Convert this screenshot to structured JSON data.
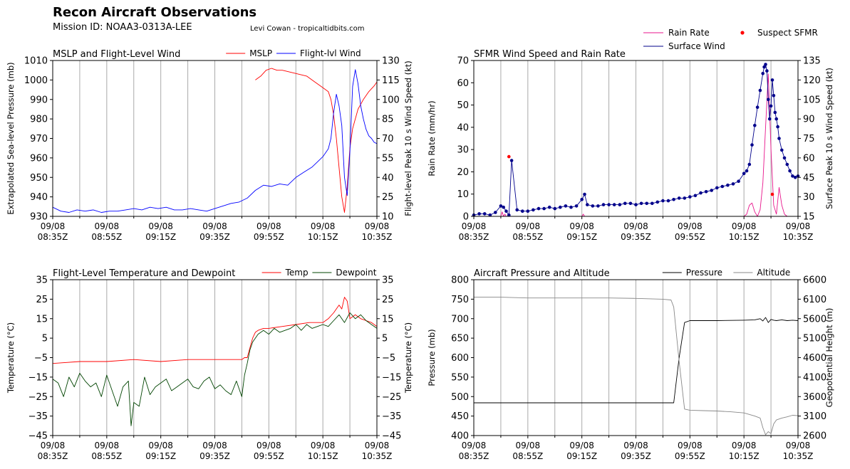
{
  "header": {
    "title": "Recon Aircraft Observations",
    "mission": "Mission ID: NOAA3-0313A-LEE",
    "credit": "Levi Cowan - tropicaltidbits.com"
  },
  "colors": {
    "mslp": "#ff0000",
    "flight_wind": "#0000ff",
    "rain": "#e8168c",
    "surface_wind": "#00008b",
    "suspect": "#ff0000",
    "temp": "#ff0000",
    "dewpoint": "#004400",
    "pressure": "#000000",
    "altitude": "#888888",
    "grid": "#aaaaaa"
  },
  "time_ticks": [
    [
      "09/08",
      "08:35Z"
    ],
    [
      "09/08",
      "08:55Z"
    ],
    [
      "09/08",
      "09:15Z"
    ],
    [
      "09/08",
      "09:35Z"
    ],
    [
      "09/08",
      "09:55Z"
    ],
    [
      "09/08",
      "10:15Z"
    ],
    [
      "09/08",
      "10:35Z"
    ]
  ],
  "top_legend": {
    "rain": "Rain Rate",
    "surface": "Surface Wind",
    "suspect": "Suspect SFMR"
  },
  "chart_data": [
    {
      "id": "p1",
      "type": "line",
      "title": "MSLP and Flight-Level Wind",
      "xlim": [
        0,
        120
      ],
      "ylabel": "Extrapolated Sea-level Pressure (mb)",
      "ylim": [
        930,
        1010
      ],
      "yticks": [
        930,
        940,
        950,
        960,
        970,
        980,
        990,
        1000,
        1010
      ],
      "ylabel2": "Flight-level Peak 10 s Wind Speed (kt)",
      "ylim2": [
        10,
        130
      ],
      "yticks2": [
        10,
        25,
        40,
        55,
        70,
        85,
        100,
        115,
        130
      ],
      "series": [
        {
          "name": "MSLP",
          "axis": "left",
          "color": "#ff0000",
          "marker": false,
          "x": [
            75,
            77,
            79,
            81,
            83,
            85,
            88,
            91,
            94,
            97,
            100,
            102,
            103,
            104,
            105,
            106,
            107,
            108,
            109,
            110,
            111,
            113,
            115,
            117,
            119,
            120
          ],
          "y": [
            1000,
            1002,
            1005,
            1006,
            1005,
            1005,
            1004,
            1003,
            1002,
            999,
            996,
            994,
            990,
            982,
            970,
            955,
            940,
            932,
            945,
            965,
            975,
            985,
            990,
            994,
            997,
            999
          ]
        },
        {
          "name": "Flight-lvl Wind",
          "axis": "right",
          "color": "#0000ff",
          "marker": false,
          "x": [
            0,
            3,
            6,
            9,
            12,
            15,
            18,
            21,
            24,
            27,
            30,
            33,
            36,
            39,
            42,
            45,
            48,
            51,
            54,
            57,
            60,
            63,
            66,
            69,
            72,
            75,
            78,
            81,
            84,
            87,
            90,
            93,
            96,
            98,
            100,
            102,
            103,
            104,
            105,
            106,
            107,
            108,
            109,
            110,
            111,
            112,
            113,
            114,
            115,
            116,
            117,
            118,
            119,
            120
          ],
          "y": [
            17,
            14,
            13,
            15,
            14,
            15,
            13,
            14,
            14,
            15,
            16,
            15,
            17,
            16,
            17,
            15,
            15,
            16,
            15,
            14,
            16,
            18,
            20,
            21,
            24,
            30,
            34,
            33,
            35,
            34,
            40,
            44,
            48,
            52,
            56,
            62,
            70,
            90,
            104,
            95,
            80,
            40,
            26,
            60,
            110,
            123,
            112,
            95,
            85,
            77,
            72,
            70,
            67,
            66
          ]
        }
      ],
      "legend": [
        "MSLP",
        "Flight-lvl Wind"
      ]
    },
    {
      "id": "p2",
      "type": "line",
      "title": "SFMR Wind Speed and Rain Rate",
      "xlim": [
        0,
        120
      ],
      "ylabel": "Rain Rate (mm/hr)",
      "ylim": [
        0,
        70
      ],
      "yticks": [
        0,
        10,
        20,
        30,
        40,
        50,
        60,
        70
      ],
      "ylabel2": "Surface Peak 10 s Wind Speed (kt)",
      "ylim2": [
        15,
        135
      ],
      "yticks2": [
        15,
        30,
        45,
        60,
        75,
        90,
        105,
        120,
        135
      ],
      "series": [
        {
          "name": "Rain Rate",
          "axis": "left",
          "color": "#e8168c",
          "marker": false,
          "x": [
            0,
            5,
            10,
            10.5,
            11,
            11.5,
            12,
            20,
            40,
            40.5,
            41,
            60,
            80,
            90,
            100,
            101,
            102,
            103,
            104,
            105,
            106,
            107,
            108,
            109,
            110,
            111,
            112,
            113,
            114,
            115,
            116,
            117,
            118,
            119,
            120
          ],
          "y": [
            0,
            0,
            0,
            2,
            0,
            1,
            0,
            0,
            0,
            1,
            0,
            0,
            0,
            0,
            0,
            1,
            5,
            6,
            2,
            0,
            3,
            15,
            40,
            64,
            30,
            5,
            1,
            13,
            5,
            1,
            0,
            0,
            0,
            0,
            0
          ]
        },
        {
          "name": "Surface Wind",
          "axis": "right",
          "color": "#00008b",
          "marker": true,
          "x": [
            0,
            2,
            4,
            6,
            8,
            10,
            11,
            12,
            13,
            14,
            16,
            18,
            20,
            22,
            24,
            26,
            28,
            30,
            32,
            34,
            36,
            38,
            40,
            41,
            42,
            44,
            46,
            48,
            50,
            52,
            54,
            56,
            58,
            60,
            62,
            64,
            66,
            68,
            70,
            72,
            74,
            76,
            78,
            80,
            82,
            84,
            86,
            88,
            90,
            92,
            94,
            96,
            98,
            100,
            101,
            102,
            103,
            104,
            105,
            106,
            107,
            107.5,
            108,
            108.5,
            109,
            109.5,
            110,
            110.5,
            111,
            111.5,
            112,
            112.5,
            113,
            114,
            115,
            116,
            117,
            118,
            119,
            120
          ],
          "y": [
            16,
            17,
            17,
            16,
            18,
            23,
            22,
            19,
            16,
            58,
            20,
            19,
            19,
            20,
            21,
            21,
            22,
            21,
            22,
            23,
            22,
            23,
            28,
            32,
            24,
            23,
            23,
            24,
            24,
            24,
            24,
            25,
            25,
            24,
            25,
            25,
            25,
            26,
            27,
            27,
            28,
            29,
            29,
            30,
            31,
            33,
            34,
            35,
            37,
            38,
            39,
            40,
            42,
            48,
            50,
            55,
            70,
            85,
            99,
            112,
            125,
            130,
            132,
            127,
            105,
            90,
            100,
            120,
            108,
            95,
            90,
            84,
            75,
            66,
            60,
            55,
            50,
            46,
            45,
            46
          ]
        },
        {
          "name": "Suspect SFMR",
          "axis": "right",
          "color": "#ff0000",
          "marker": true,
          "markerOnly": true,
          "x": [
            13,
            110.5
          ],
          "y": [
            61,
            32
          ]
        }
      ],
      "legend": [
        "Rain Rate",
        "Surface Wind",
        "Suspect SFMR"
      ]
    },
    {
      "id": "p3",
      "type": "line",
      "title": "Flight-Level Temperature and Dewpoint",
      "xlim": [
        0,
        120
      ],
      "ylabel": "Temperature ($^\\circ C$)",
      "ylim": [
        -45,
        35
      ],
      "yticks": [
        -45,
        -35,
        -25,
        -15,
        -5,
        5,
        15,
        25,
        35
      ],
      "ylabel2": "Temperature ($^\\circ C$)",
      "ylim2": [
        -45,
        35
      ],
      "yticks2": [
        -45,
        -35,
        -25,
        -15,
        -5,
        5,
        15,
        25,
        35
      ],
      "series": [
        {
          "name": "Temp",
          "axis": "left",
          "color": "#ff0000",
          "marker": false,
          "x": [
            0,
            10,
            20,
            30,
            40,
            50,
            60,
            65,
            70,
            71,
            72,
            73,
            74,
            75,
            76,
            78,
            80,
            85,
            90,
            95,
            100,
            102,
            104,
            106,
            107,
            108,
            109,
            110,
            112,
            114,
            116,
            118,
            120
          ],
          "y": [
            -8,
            -7,
            -7,
            -6,
            -7,
            -6,
            -6,
            -6,
            -6,
            -5,
            -5,
            0,
            5,
            8,
            9,
            10,
            10,
            11,
            12,
            13,
            13,
            15,
            18,
            22,
            20,
            26,
            24,
            15,
            17,
            15,
            14,
            13,
            11
          ]
        },
        {
          "name": "Dewpoint",
          "axis": "left",
          "color": "#004400",
          "marker": false,
          "x": [
            0,
            2,
            4,
            6,
            8,
            10,
            12,
            14,
            16,
            18,
            20,
            22,
            24,
            26,
            28,
            29,
            30,
            32,
            34,
            36,
            38,
            40,
            42,
            44,
            46,
            48,
            50,
            52,
            54,
            56,
            58,
            60,
            62,
            64,
            66,
            68,
            70,
            71,
            72,
            73,
            74,
            75,
            76,
            78,
            80,
            82,
            84,
            86,
            88,
            90,
            92,
            94,
            96,
            98,
            100,
            102,
            104,
            106,
            108,
            110,
            112,
            114,
            116,
            118,
            120
          ],
          "y": [
            -16,
            -18,
            -25,
            -15,
            -20,
            -13,
            -17,
            -20,
            -18,
            -25,
            -14,
            -22,
            -30,
            -20,
            -17,
            -40,
            -28,
            -30,
            -15,
            -24,
            -20,
            -18,
            -16,
            -22,
            -20,
            -18,
            -16,
            -20,
            -21,
            -17,
            -15,
            -21,
            -19,
            -22,
            -24,
            -17,
            -25,
            -14,
            -8,
            -1,
            3,
            5,
            7,
            9,
            7,
            10,
            8,
            9,
            10,
            12,
            9,
            12,
            10,
            11,
            12,
            11,
            14,
            17,
            13,
            18,
            15,
            17,
            14,
            12,
            10
          ]
        }
      ],
      "legend": [
        "Temp",
        "Dewpoint"
      ]
    },
    {
      "id": "p4",
      "type": "line",
      "title": "Aircraft Pressure and Altitude",
      "xlim": [
        0,
        120
      ],
      "ylabel": "Pressure (mb)",
      "ylim": [
        400,
        800
      ],
      "yticks": [
        400,
        450,
        500,
        550,
        600,
        650,
        700,
        750,
        800
      ],
      "ylabel2": "Geopotential Height (m)",
      "ylim2": [
        2600,
        6600
      ],
      "yticks2": [
        2600,
        3100,
        3600,
        4100,
        4600,
        5100,
        5600,
        6100,
        6600
      ],
      "series": [
        {
          "name": "Pressure",
          "axis": "left",
          "color": "#000000",
          "marker": false,
          "x": [
            0,
            20,
            40,
            60,
            70,
            74,
            76,
            78,
            80,
            90,
            100,
            104,
            106,
            107,
            108,
            109,
            110,
            111,
            112,
            114,
            116,
            118,
            120
          ],
          "y": [
            484,
            484,
            484,
            484,
            484,
            484,
            600,
            690,
            695,
            695,
            696,
            697,
            700,
            694,
            703,
            690,
            698,
            696,
            695,
            697,
            695,
            696,
            695
          ]
        },
        {
          "name": "Altitude",
          "axis": "right",
          "color": "#888888",
          "marker": false,
          "x": [
            0,
            10,
            20,
            30,
            40,
            50,
            60,
            70,
            73,
            74,
            76,
            78,
            80,
            85,
            90,
            95,
            100,
            104,
            106,
            107,
            108,
            109,
            110,
            111,
            112,
            114,
            116,
            118,
            120
          ],
          "y": [
            6150,
            6150,
            6130,
            6130,
            6130,
            6130,
            6120,
            6100,
            6080,
            5900,
            4500,
            3280,
            3250,
            3240,
            3230,
            3210,
            3180,
            3100,
            3050,
            2800,
            2620,
            2700,
            2650,
            2900,
            3000,
            3050,
            3080,
            3120,
            3110
          ]
        }
      ],
      "legend": [
        "Pressure",
        "Altitude"
      ]
    }
  ]
}
